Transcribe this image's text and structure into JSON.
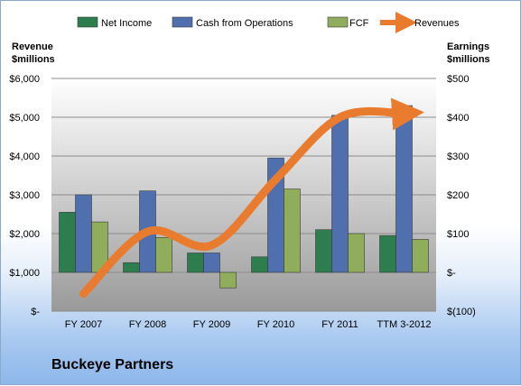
{
  "company": "Buckeye Partners",
  "chart_data": {
    "type": "bar",
    "categories": [
      "FY 2007",
      "FY 2008",
      "FY 2009",
      "FY 2010",
      "FY 2011",
      "TTM 3-2012"
    ],
    "series": [
      {
        "name": "Net Income",
        "axis": "right",
        "color": "#2e7d4f",
        "values": [
          155,
          25,
          50,
          40,
          110,
          95
        ]
      },
      {
        "name": "Cash from Operations",
        "axis": "right",
        "color": "#4f6fae",
        "values": [
          200,
          210,
          50,
          295,
          405,
          430
        ]
      },
      {
        "name": "FCF",
        "axis": "right",
        "color": "#8fad5a",
        "values": [
          130,
          90,
          -40,
          215,
          100,
          85
        ]
      },
      {
        "name": "Revenues",
        "axis": "left",
        "type": "line",
        "color": "#e97b2f",
        "values": [
          450,
          2050,
          1700,
          3400,
          5000,
          5100
        ]
      }
    ],
    "y_left": {
      "label_line1": "Revenue",
      "label_line2": "$millions",
      "lim": [
        0,
        6000
      ],
      "ticks": [
        "$-",
        "$1,000",
        "$2,000",
        "$3,000",
        "$4,000",
        "$5,000",
        "$6,000"
      ]
    },
    "y_right": {
      "label_line1": "Earnings",
      "label_line2": "$millions",
      "lim": [
        -100,
        500
      ],
      "ticks": [
        "$(100)",
        "$-",
        "$100",
        "$200",
        "$300",
        "$400",
        "$500"
      ]
    },
    "legend": "top",
    "grid": true
  }
}
